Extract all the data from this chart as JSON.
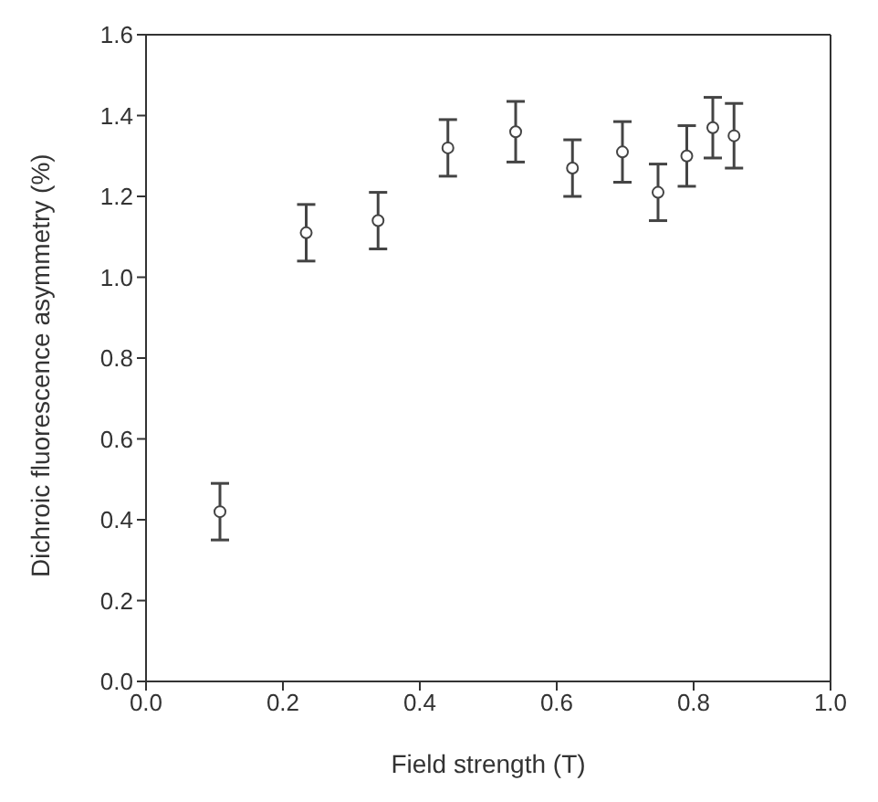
{
  "chart_data": {
    "type": "scatter",
    "xlabel": "Field strength (T)",
    "ylabel": "Dichroic fluorescence asymmetry (%)",
    "x": [
      0.108,
      0.234,
      0.339,
      0.441,
      0.54,
      0.623,
      0.696,
      0.748,
      0.79,
      0.828,
      0.859
    ],
    "values": [
      0.42,
      1.11,
      1.14,
      1.32,
      1.36,
      1.27,
      1.31,
      1.21,
      1.3,
      1.37,
      1.35
    ],
    "errors": [
      0.07,
      0.07,
      0.07,
      0.07,
      0.075,
      0.07,
      0.075,
      0.07,
      0.075,
      0.075,
      0.08
    ],
    "color": "#444444",
    "marker": "circle",
    "xlim": [
      0,
      1
    ],
    "xticks": [
      {
        "value": 0,
        "label": "0.0"
      },
      {
        "value": 0.2,
        "label": "0.2"
      },
      {
        "value": 0.4,
        "label": "0.4"
      },
      {
        "value": 0.6,
        "label": "0.6"
      },
      {
        "value": 0.8,
        "label": "0.8"
      },
      {
        "value": 1,
        "label": "1.0"
      }
    ],
    "ylim": [
      0,
      1.6
    ],
    "yticks": [
      {
        "value": 0,
        "label": "0.0"
      },
      {
        "value": 0.2,
        "label": "0.2"
      },
      {
        "value": 0.4,
        "label": "0.4"
      },
      {
        "value": 0.6,
        "label": "0.6"
      },
      {
        "value": 0.8,
        "label": "0.8"
      },
      {
        "value": 1,
        "label": "1.0"
      },
      {
        "value": 1.2,
        "label": "1.2"
      },
      {
        "value": 1.4,
        "label": "1.4"
      },
      {
        "value": 1.6,
        "label": "1.6"
      }
    ],
    "grid": false
  }
}
